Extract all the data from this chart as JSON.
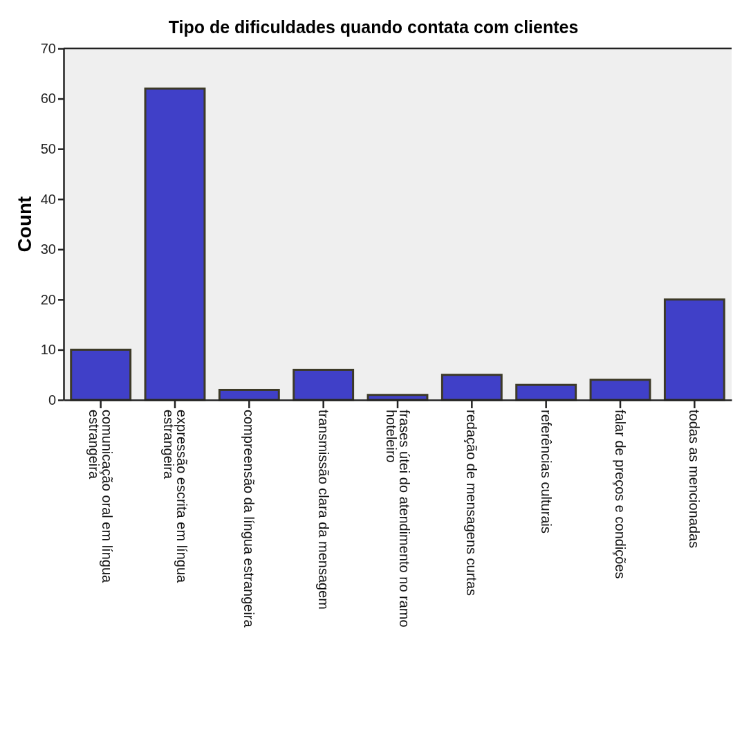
{
  "chart_data": {
    "type": "bar",
    "title": "Tipo de dificuldades quando contata com clientes",
    "ylabel": "Count",
    "categories": [
      "comunicação oral em língua\nestrangeira",
      "expressão escrita em língua\nestrangeira",
      "compreensão da língua estrangeira",
      "transmissão clara da mensagem",
      "frases útei do atendimento no ramo\nhoteleiro",
      "redação de mensagens curtas",
      "referências culturais",
      "falar de preços e condições",
      "todas as mencionadas"
    ],
    "values": [
      10,
      62,
      2,
      6,
      1,
      5,
      3,
      4,
      20
    ],
    "color": "#4040c8",
    "ylim": [
      0,
      70
    ],
    "yticks": [
      0,
      10,
      20,
      30,
      40,
      50,
      60,
      70
    ],
    "grid": false
  }
}
